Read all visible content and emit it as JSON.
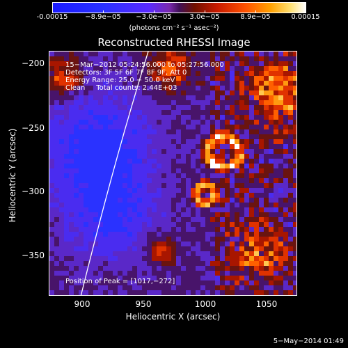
{
  "colorbar": {
    "ticks": [
      "-0.00015",
      "−8.9e−05",
      "−3.0e−05",
      "3.0e−05",
      "8.9e−05",
      "0.00015"
    ],
    "unit": "(photons cm⁻² s⁻¹ asec⁻²)"
  },
  "title": "Reconstructed RHESSI Image",
  "info": {
    "line1": "15−Mar−2012 05:24:56.000 to 05:27:56.000",
    "line2": "Detectors: 3F 5F 6F 7F 8F 9F, Att 0",
    "line3": "Energy Range: 25.0 − 50.0 keV",
    "line4": "Clean     Total counts: 2.44E+03"
  },
  "peak": "Position of Peak = [1017,−272]",
  "axes": {
    "xlabel": "Heliocentric X (arcsec)",
    "ylabel": "Heliocentric Y (arcsec)",
    "xticks": [
      "900",
      "950",
      "1000",
      "1050"
    ],
    "yticks": [
      "−200",
      "−250",
      "−300",
      "−350"
    ],
    "xrange": [
      880,
      1070
    ],
    "yrange": [
      -380,
      -190
    ]
  },
  "date": "5−May−2014 01:49",
  "colors": {
    "negative": "#2a30ff",
    "zero": "#401058",
    "positive": "#ff5000",
    "peak": "#ffffff",
    "limb": "#ffffff"
  }
}
